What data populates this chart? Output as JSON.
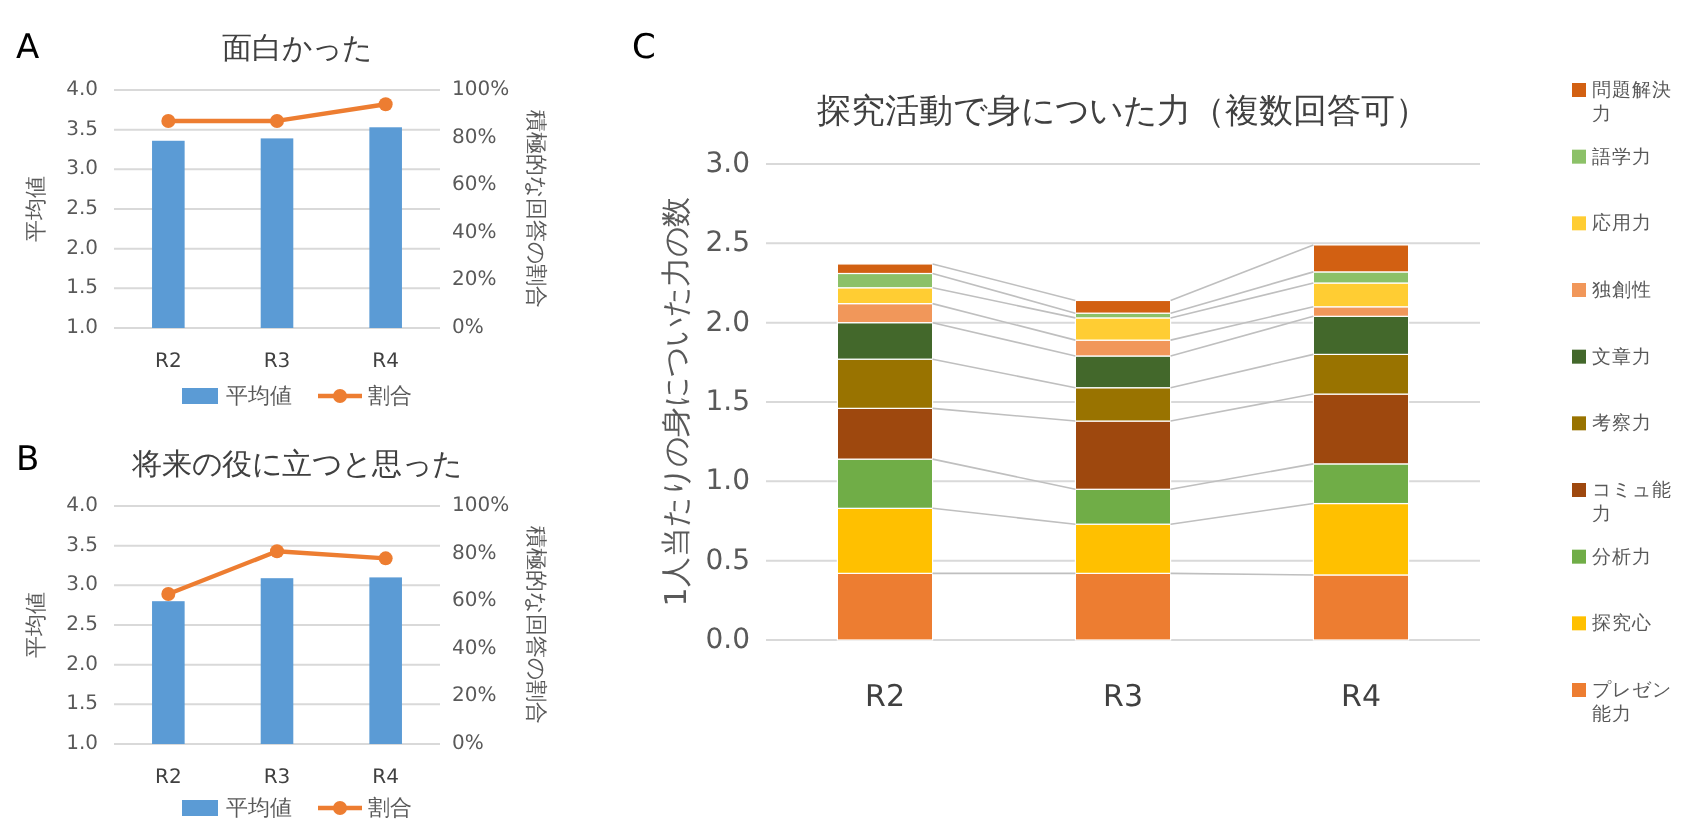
{
  "chart_data": [
    {
      "type": "bar",
      "title": "面白かった",
      "ylabel": "平均値",
      "y2label": "積極的な回答の割合",
      "annotations": [
        "A"
      ],
      "categories": [
        "R2",
        "R3",
        "R4"
      ],
      "series": [
        {
          "name": "平均値",
          "color": "#5b9bd5",
          "values": [
            3.36,
            3.39,
            3.53
          ]
        },
        {
          "name": "割合",
          "type": "line",
          "axis": "y2",
          "color": "#ed7d31",
          "values": [
            87,
            87,
            94
          ]
        }
      ],
      "ylim": [
        1,
        4
      ],
      "yticks": [
        {
          "value": 1,
          "label": "1.0"
        },
        {
          "value": 1.5,
          "label": "1.5"
        },
        {
          "value": 2,
          "label": "2.0"
        },
        {
          "value": 2.5,
          "label": "2.5"
        },
        {
          "value": 3,
          "label": "3.0"
        },
        {
          "value": 3.5,
          "label": "3.5"
        },
        {
          "value": 4,
          "label": "4.0"
        }
      ],
      "y2lim": [
        0,
        100
      ],
      "y2ticks": [
        {
          "value": 0,
          "label": "0%"
        },
        {
          "value": 20,
          "label": "20%"
        },
        {
          "value": 40,
          "label": "40%"
        },
        {
          "value": 60,
          "label": "60%"
        },
        {
          "value": 80,
          "label": "80%"
        },
        {
          "value": 100,
          "label": "100%"
        }
      ],
      "grid": "y",
      "legend": "bottom",
      "marker": "circle"
    },
    {
      "type": "bar",
      "title": "将来の役に立つと思った",
      "ylabel": "平均値",
      "y2label": "積極的な回答の割合",
      "annotations": [
        "B"
      ],
      "categories": [
        "R2",
        "R3",
        "R4"
      ],
      "series": [
        {
          "name": "平均値",
          "color": "#5b9bd5",
          "values": [
            2.8,
            3.09,
            3.1
          ]
        },
        {
          "name": "割合",
          "type": "line",
          "axis": "y2",
          "color": "#ed7d31",
          "values": [
            63,
            81,
            78
          ]
        }
      ],
      "ylim": [
        1,
        4
      ],
      "yticks": [
        {
          "value": 1,
          "label": "1.0"
        },
        {
          "value": 1.5,
          "label": "1.5"
        },
        {
          "value": 2,
          "label": "2.0"
        },
        {
          "value": 2.5,
          "label": "2.5"
        },
        {
          "value": 3,
          "label": "3.0"
        },
        {
          "value": 3.5,
          "label": "3.5"
        },
        {
          "value": 4,
          "label": "4.0"
        }
      ],
      "y2lim": [
        0,
        100
      ],
      "y2ticks": [
        {
          "value": 0,
          "label": "0%"
        },
        {
          "value": 20,
          "label": "20%"
        },
        {
          "value": 40,
          "label": "40%"
        },
        {
          "value": 60,
          "label": "60%"
        },
        {
          "value": 80,
          "label": "80%"
        },
        {
          "value": 100,
          "label": "100%"
        }
      ],
      "grid": "y",
      "legend": "bottom",
      "marker": "circle"
    },
    {
      "type": "bar",
      "stacked": true,
      "title": "探究活動で身についた力（複数回答可）",
      "ylabel": "1人当たりの身についた力の数",
      "annotations": [
        "C"
      ],
      "categories": [
        "R2",
        "R3",
        "R4"
      ],
      "series": [
        {
          "name": "プレゼン能力",
          "color": "#ed7d31",
          "values": [
            0.42,
            0.42,
            0.41
          ]
        },
        {
          "name": "探究心",
          "color": "#ffc000",
          "values": [
            0.41,
            0.31,
            0.45
          ]
        },
        {
          "name": "分析力",
          "color": "#70ad47",
          "values": [
            0.31,
            0.22,
            0.25
          ]
        },
        {
          "name": "コミュ能力",
          "color": "#9e480e",
          "values": [
            0.32,
            0.43,
            0.44
          ]
        },
        {
          "name": "考察力",
          "color": "#997300",
          "values": [
            0.31,
            0.21,
            0.25
          ]
        },
        {
          "name": "文章力",
          "color": "#43682b",
          "values": [
            0.23,
            0.2,
            0.24
          ]
        },
        {
          "name": "独創性",
          "color": "#f1975a",
          "values": [
            0.12,
            0.1,
            0.06
          ]
        },
        {
          "name": "応用力",
          "color": "#ffcd33",
          "values": [
            0.1,
            0.14,
            0.15
          ]
        },
        {
          "name": "語学力",
          "color": "#8cc168",
          "values": [
            0.09,
            0.03,
            0.07
          ]
        },
        {
          "name": "問題解決力",
          "color": "#d26012",
          "values": [
            0.06,
            0.08,
            0.17
          ]
        }
      ],
      "ylim": [
        0,
        3
      ],
      "yticks": [
        {
          "value": 0,
          "label": "0.0"
        },
        {
          "value": 0.5,
          "label": "0.5"
        },
        {
          "value": 1,
          "label": "1.0"
        },
        {
          "value": 1.5,
          "label": "1.5"
        },
        {
          "value": 2,
          "label": "2.0"
        },
        {
          "value": 2.5,
          "label": "2.5"
        },
        {
          "value": 3,
          "label": "3.0"
        }
      ],
      "grid": "y",
      "legend": "right"
    }
  ]
}
